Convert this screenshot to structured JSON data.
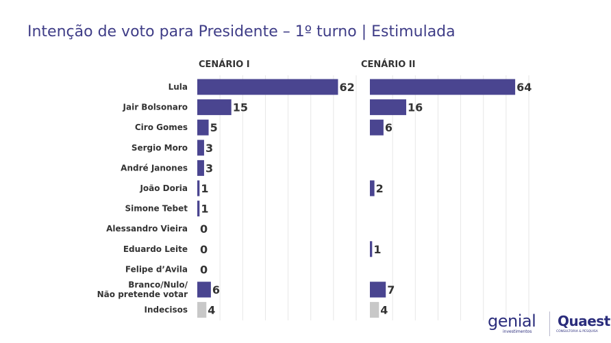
{
  "title": "Intenção de voto para Presidente – 1º turno | Estimulada",
  "chart_data": {
    "type": "bar",
    "orientation": "horizontal",
    "title": "Intenção de voto para Presidente – 1º turno | Estimulada",
    "categories": [
      "Lula",
      "Jair Bolsonaro",
      "Ciro Gomes",
      "Sergio Moro",
      "André Janones",
      "João Doria",
      "Simone Tebet",
      "Alessandro Vieira",
      "Eduardo Leite",
      "Felipe d’Avila",
      [
        "Branco/Nulo/",
        "Não pretende votar"
      ],
      "Indecisos"
    ],
    "series": [
      {
        "name": "CENÁRIO I",
        "values": [
          62,
          15,
          5,
          3,
          3,
          1,
          1,
          0,
          0,
          0,
          6,
          4
        ]
      },
      {
        "name": "CENÁRIO II",
        "values": [
          64,
          16,
          6,
          null,
          null,
          2,
          null,
          null,
          1,
          null,
          7,
          4
        ]
      }
    ],
    "xlim": [
      0,
      70
    ],
    "grid": true,
    "colors": {
      "bar": "#4a4590",
      "undecided": "#c8c8c8"
    }
  },
  "logos": {
    "genial": {
      "name": "genial",
      "subtitle": "investimentos"
    },
    "quaest": {
      "name": "Quaest",
      "subtitle": "CONSULTORIA & PESQUISA"
    }
  }
}
